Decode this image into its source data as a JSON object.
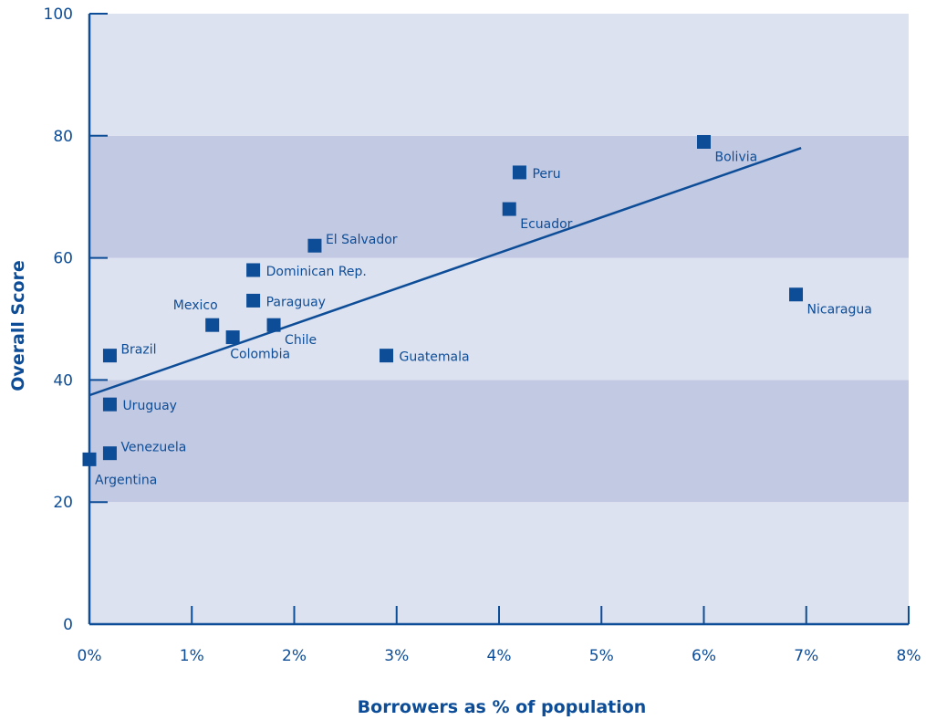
{
  "chart_data": {
    "type": "scatter",
    "xlabel": "Borrowers as % of population",
    "ylabel": "Overall Score",
    "xlim": [
      0,
      8
    ],
    "ylim": [
      0,
      100
    ],
    "x_ticks": [
      "0%",
      "1%",
      "2%",
      "3%",
      "4%",
      "5%",
      "6%",
      "7%",
      "8%"
    ],
    "y_ticks": [
      "0",
      "20",
      "40",
      "60",
      "80",
      "100"
    ],
    "bands": [
      {
        "from": 0,
        "to": 20,
        "color": "#dde2f0"
      },
      {
        "from": 20,
        "to": 40,
        "color": "#c2c9e3"
      },
      {
        "from": 40,
        "to": 60,
        "color": "#dde2f0"
      },
      {
        "from": 60,
        "to": 80,
        "color": "#c2c9e3"
      },
      {
        "from": 80,
        "to": 100,
        "color": "#dde2f0"
      }
    ],
    "colors": {
      "marker": "#0d4d97",
      "text": "#0d4d97",
      "line": "#0d4d97"
    },
    "points": [
      {
        "name": "Argentina",
        "x": 0.0,
        "y": 27,
        "label_pos": "below-right"
      },
      {
        "name": "Venezuela",
        "x": 0.2,
        "y": 28,
        "label_pos": "right-up"
      },
      {
        "name": "Uruguay",
        "x": 0.2,
        "y": 36,
        "label_pos": "right"
      },
      {
        "name": "Brazil",
        "x": 0.2,
        "y": 44,
        "label_pos": "right-up"
      },
      {
        "name": "Mexico",
        "x": 1.2,
        "y": 49,
        "label_pos": "above-left"
      },
      {
        "name": "Colombia",
        "x": 1.4,
        "y": 47,
        "label_pos": "below"
      },
      {
        "name": "Chile",
        "x": 1.8,
        "y": 49,
        "label_pos": "below-right"
      },
      {
        "name": "Paraguay",
        "x": 1.6,
        "y": 53,
        "label_pos": "right"
      },
      {
        "name": "Dominican Rep.",
        "x": 1.6,
        "y": 58,
        "label_pos": "right"
      },
      {
        "name": "El Salvador",
        "x": 2.2,
        "y": 62,
        "label_pos": "right-up"
      },
      {
        "name": "Guatemala",
        "x": 2.9,
        "y": 44,
        "label_pos": "right"
      },
      {
        "name": "Ecuador",
        "x": 4.1,
        "y": 68,
        "label_pos": "below-right"
      },
      {
        "name": "Peru",
        "x": 4.2,
        "y": 74,
        "label_pos": "right"
      },
      {
        "name": "Bolivia",
        "x": 6.0,
        "y": 79,
        "label_pos": "below-right"
      },
      {
        "name": "Nicaragua",
        "x": 6.9,
        "y": 54,
        "label_pos": "below-right"
      }
    ],
    "trendline": {
      "x": [
        0,
        6.95
      ],
      "y": [
        37.5,
        78
      ]
    }
  }
}
